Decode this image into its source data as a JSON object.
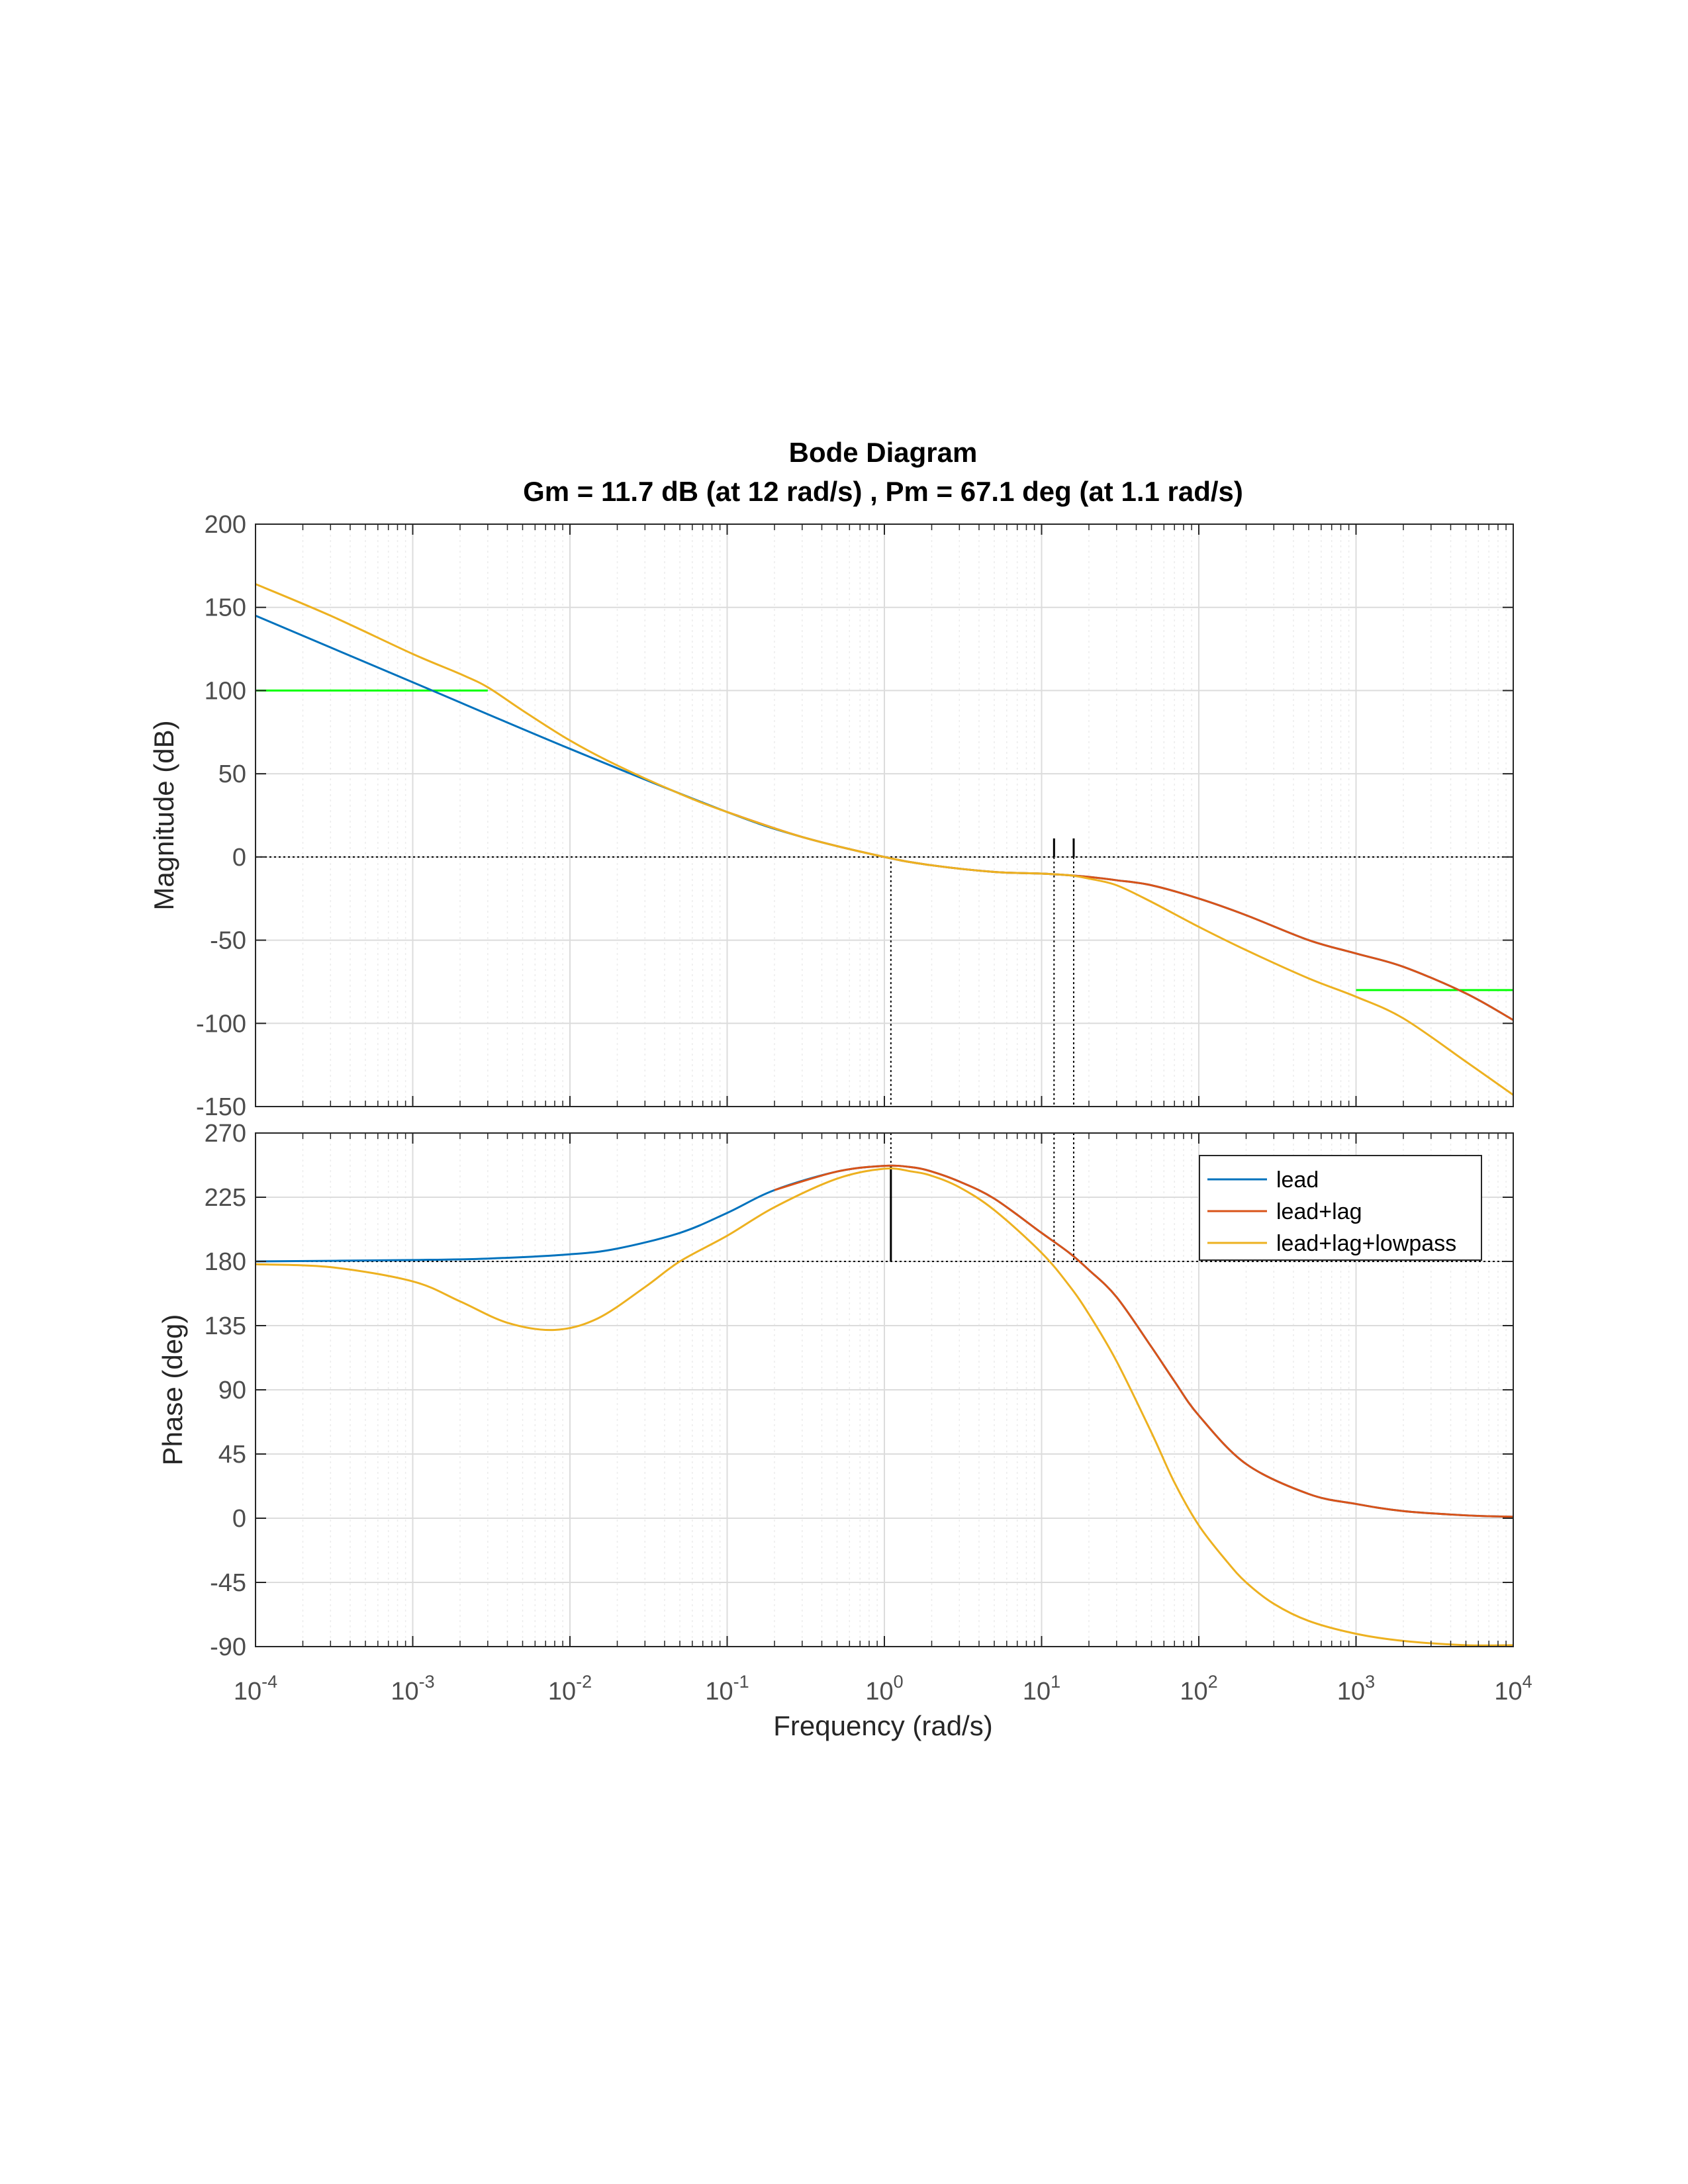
{
  "chart_data": {
    "type": "line",
    "title": "Bode Diagram",
    "subtitle": "Gm = 11.7 dB (at 12 rad/s) ,  Pm = 67.1 deg (at 1.1 rad/s)",
    "xlabel": "Frequency  (rad/s)",
    "xscale": "log",
    "xlim": [
      0.0001,
      10000
    ],
    "x_ticks": [
      {
        "value": 0.0001,
        "base": "10",
        "exp": "-4"
      },
      {
        "value": 0.001,
        "base": "10",
        "exp": "-3"
      },
      {
        "value": 0.01,
        "base": "10",
        "exp": "-2"
      },
      {
        "value": 0.1,
        "base": "10",
        "exp": "-1"
      },
      {
        "value": 1,
        "base": "10",
        "exp": "0"
      },
      {
        "value": 10,
        "base": "10",
        "exp": "1"
      },
      {
        "value": 100,
        "base": "10",
        "exp": "2"
      },
      {
        "value": 1000,
        "base": "10",
        "exp": "3"
      },
      {
        "value": 10000,
        "base": "10",
        "exp": "4"
      }
    ],
    "grid": true,
    "legend_placement": "top-right (phase panel)",
    "margins": {
      "gain_margin_db": 11.7,
      "gain_crossover_freq": 12,
      "phase_margin_deg": 67.1,
      "phase_crossover_freq": 1.1,
      "marker_freqs": [
        1.1,
        12,
        16
      ]
    },
    "series_colors": {
      "lead": "#0072BD",
      "lead+lag": "#D95319",
      "lead+lag+lowpass": "#EDB120",
      "bound": "#00FF00"
    },
    "magnitude": {
      "ylabel": "Magnitude (dB)",
      "ylim": [
        -150,
        200
      ],
      "yticks": [
        "200",
        "150",
        "100",
        "50",
        "0",
        "-50",
        "-100",
        "-150"
      ],
      "series": [
        {
          "name": "lead",
          "x": [
            0.0001,
            0.001,
            0.01,
            0.1,
            0.3,
            1,
            2,
            5,
            10,
            15,
            20,
            30,
            50,
            100,
            200,
            500,
            1000,
            2000,
            5000,
            10000
          ],
          "y": [
            145,
            105,
            65,
            27,
            12,
            0,
            -5,
            -9,
            -10,
            -11,
            -12,
            -14,
            -17,
            -25,
            -35,
            -50,
            -58,
            -66,
            -82,
            -98
          ]
        },
        {
          "name": "lead+lag",
          "x": [
            0.1,
            0.3,
            1,
            2,
            5,
            10,
            15,
            20,
            30,
            50,
            100,
            200,
            500,
            1000,
            2000,
            5000,
            10000
          ],
          "y": [
            27,
            12,
            0,
            -5,
            -9,
            -10,
            -11,
            -12,
            -14,
            -17,
            -25,
            -35,
            -50,
            -58,
            -66,
            -82,
            -98
          ]
        },
        {
          "name": "lead+lag+lowpass",
          "x": [
            0.0001,
            0.0003,
            0.001,
            0.002,
            0.003,
            0.005,
            0.01,
            0.02,
            0.05,
            0.1,
            0.3,
            1,
            2,
            5,
            10,
            15,
            20,
            30,
            50,
            100,
            200,
            500,
            1000,
            2000,
            5000,
            10000
          ],
          "y": [
            164,
            145,
            122,
            110,
            102,
            88,
            70,
            55,
            38,
            27,
            12,
            0,
            -5,
            -9,
            -10,
            -11,
            -13,
            -17,
            -27,
            -42,
            -56,
            -73,
            -84,
            -97,
            -123,
            -143
          ]
        },
        {
          "name": "bound-low",
          "x": [
            0.0001,
            0.003
          ],
          "y": [
            100,
            100
          ]
        },
        {
          "name": "bound-high",
          "x": [
            1000,
            10000
          ],
          "y": [
            -80,
            -80
          ]
        }
      ]
    },
    "phase": {
      "ylabel": "Phase (deg)",
      "ylim": [
        -90,
        270
      ],
      "yticks": [
        "270",
        "225",
        "180",
        "135",
        "90",
        "45",
        "0",
        "-45",
        "-90"
      ],
      "series": [
        {
          "name": "lead",
          "x": [
            0.0001,
            0.001,
            0.003,
            0.01,
            0.02,
            0.05,
            0.1,
            0.2,
            0.5,
            1,
            1.5,
            2,
            3,
            5,
            10,
            15,
            20,
            30,
            50,
            70,
            100,
            200,
            500,
            1000,
            2000,
            5000,
            10000
          ],
          "y": [
            180,
            181,
            182,
            185,
            189,
            200,
            214,
            230,
            243,
            247,
            246,
            243,
            236,
            224,
            200,
            186,
            174,
            155,
            120,
            96,
            72,
            38,
            17,
            10,
            5,
            2,
            1
          ]
        },
        {
          "name": "lead+lag",
          "x": [
            0.2,
            0.5,
            1,
            1.5,
            2,
            3,
            5,
            10,
            15,
            20,
            30,
            50,
            70,
            100,
            200,
            500,
            1000,
            2000,
            5000,
            10000
          ],
          "y": [
            230,
            243,
            247,
            246,
            243,
            236,
            224,
            200,
            186,
            174,
            155,
            120,
            96,
            72,
            38,
            17,
            10,
            5,
            2,
            1
          ]
        },
        {
          "name": "lead+lag+lowpass",
          "x": [
            0.0001,
            0.0003,
            0.001,
            0.002,
            0.004,
            0.008,
            0.015,
            0.03,
            0.05,
            0.1,
            0.2,
            0.5,
            1,
            1.5,
            2,
            3,
            5,
            10,
            15,
            20,
            30,
            50,
            70,
            100,
            150,
            200,
            300,
            500,
            1000,
            2000,
            5000,
            10000
          ],
          "y": [
            178,
            176,
            166,
            152,
            137,
            132,
            140,
            162,
            180,
            198,
            218,
            238,
            245,
            243,
            240,
            232,
            216,
            186,
            163,
            143,
            110,
            60,
            25,
            -5,
            -30,
            -45,
            -60,
            -72,
            -81,
            -86,
            -89,
            -89
          ]
        }
      ],
      "legend": [
        "lead",
        "lead+lag",
        "lead+lag+lowpass"
      ]
    }
  }
}
